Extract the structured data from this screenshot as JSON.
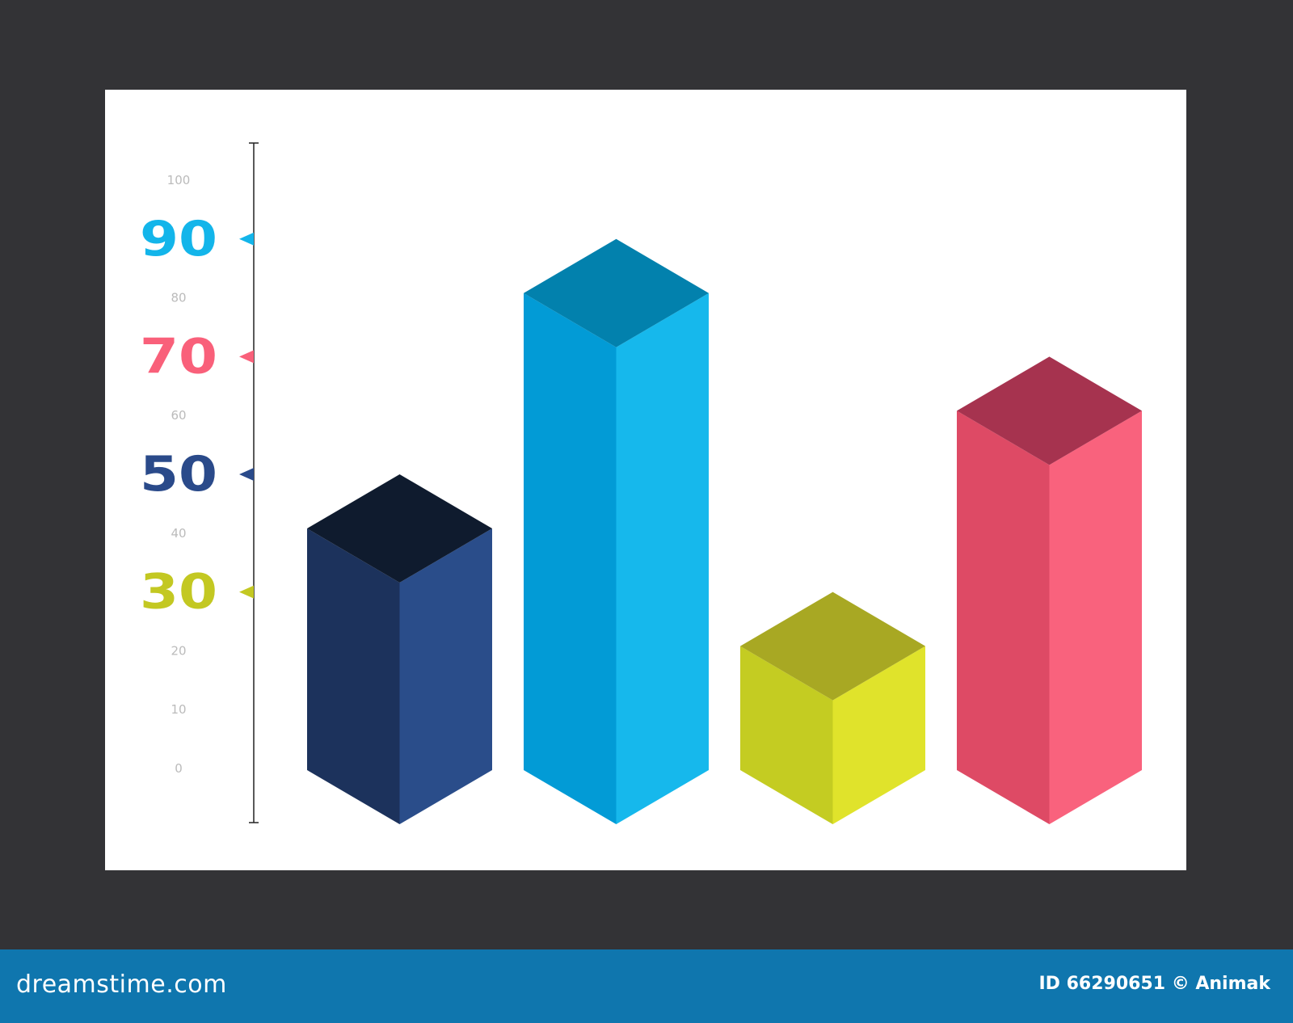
{
  "chart_data": {
    "type": "bar",
    "style": "isometric-3d",
    "categories": [
      "",
      "",
      "",
      ""
    ],
    "values": [
      50,
      90,
      30,
      70
    ],
    "colors": [
      {
        "top": "#0f1b2e",
        "left": "#1c325c",
        "right": "#2a4d8a"
      },
      {
        "top": "#0281ad",
        "left": "#029bd6",
        "right": "#16b8ec"
      },
      {
        "top": "#a8a823",
        "left": "#c4cc22",
        "right": "#e0e32b"
      },
      {
        "top": "#a6334f",
        "left": "#de4a65",
        "right": "#f9627d"
      }
    ],
    "ylim": [
      0,
      100
    ],
    "minor_ticks": [
      "100",
      "80",
      "60",
      "40",
      "20",
      "10",
      "0"
    ],
    "highlight_ticks": [
      {
        "label": "90",
        "value": 90,
        "color": "#13b5ea"
      },
      {
        "label": "70",
        "value": 70,
        "color": "#f9607a"
      },
      {
        "label": "50",
        "value": 50,
        "color": "#2a4a8a"
      },
      {
        "label": "30",
        "value": 30,
        "color": "#c3c822"
      }
    ],
    "grid": false,
    "legend": "none"
  },
  "footer": {
    "brand": "dreamstime.com",
    "credit": "ID 66290651 © Animak"
  },
  "colors": {
    "background": "#333336",
    "banner": "#0f76ae"
  }
}
